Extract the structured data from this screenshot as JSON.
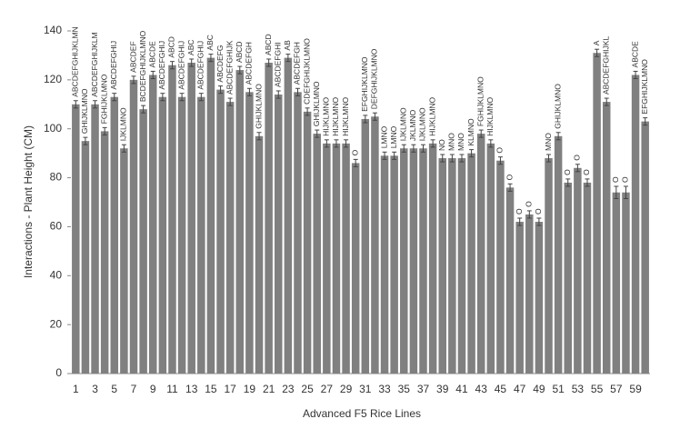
{
  "chart_data": {
    "type": "bar",
    "x_label": "Advanced F5 Rice Lines",
    "y_label": "Interactions - Plant Height (CM)",
    "categories": [
      "1",
      null,
      "3",
      null,
      "5",
      null,
      "7",
      null,
      "9",
      null,
      "11",
      null,
      "13",
      null,
      "15",
      null,
      "17",
      null,
      "19",
      null,
      "21",
      null,
      "23",
      null,
      "25",
      null,
      "27",
      null,
      "29",
      null,
      "31",
      null,
      "33",
      null,
      "35",
      null,
      "37",
      null,
      "39",
      null,
      "41",
      null,
      "43",
      null,
      "45",
      null,
      "47",
      null,
      "49",
      null,
      "51",
      null,
      "53",
      null,
      "55",
      null,
      "57",
      null,
      "59",
      null
    ],
    "values": [
      110,
      95,
      110,
      99,
      113,
      92,
      120,
      108,
      122,
      113,
      126,
      113,
      127,
      113,
      129,
      116,
      111,
      124,
      115,
      97,
      127,
      114,
      129,
      115,
      107,
      98,
      94,
      94,
      94,
      86,
      104,
      105,
      89,
      89,
      92,
      92,
      92,
      94,
      88,
      88,
      88,
      90,
      98,
      94,
      87,
      76,
      62,
      65,
      62,
      88,
      97,
      78,
      84,
      78,
      131,
      111,
      74,
      74,
      122,
      103
    ],
    "errors": [
      1.5,
      1.5,
      1.5,
      1.5,
      1.5,
      1.5,
      1.5,
      1.5,
      1.5,
      1.5,
      1.5,
      1.5,
      1.5,
      1.5,
      1.5,
      1.5,
      1.5,
      1.5,
      1.5,
      1.5,
      1.5,
      1.5,
      1.5,
      1.5,
      1.5,
      1.5,
      1.5,
      1.5,
      1.5,
      1.5,
      1.5,
      1.5,
      1.5,
      1.5,
      1.5,
      1.5,
      1.5,
      1.5,
      1.5,
      1.5,
      1.5,
      1.5,
      1.5,
      1.5,
      1.5,
      1.5,
      1.5,
      1.5,
      1.5,
      1.5,
      1.5,
      1.5,
      1.5,
      1.5,
      1.5,
      1.5,
      2.5,
      2.5,
      1.5,
      1.5
    ],
    "value_labels": [
      "ABCDEFGHIJKLMN",
      "GHIJKLMNO",
      "ABCDEFGHIJKLM",
      "FGHIJKLMNO",
      "ABCDEFGHIJ",
      "IJKLMNO",
      "ABCDEF",
      "BCDEFGHIJKLMNO",
      "ABCDE",
      "ABCDEFGHIJ",
      "ABCD",
      "ABCDEFGHIJ",
      "ABC",
      "ABCDEFGHIJ",
      "ABC",
      "ABCDEFG",
      "ABCDEFGHIJK",
      "ABCD",
      "ABCDEFGH",
      "GHIJKLMNO",
      "ABCD",
      "ABCDEFGHI",
      "AB",
      "ABCDEFGH",
      "CDEFGHIJKLMNO",
      "GHIJKLMNO",
      "HIJKLMNO",
      "HIJKLMNO",
      "HIJKLMNO",
      "O",
      "EFGHIJKLMNO",
      "DEFGHIJKLMNO",
      "LMNO",
      "LMNO",
      "IJKLMNO",
      "JKLMNO",
      "IJKLMNO",
      "HIJKLMNO",
      "NO",
      "MNO",
      "MNO",
      "KLMNO",
      "FGHIJKLMNO",
      "HIJKLMNO",
      "O",
      "O",
      "O",
      "O",
      "O",
      "MNO",
      "GHIJKLMNO",
      "O",
      "O",
      "O",
      "A",
      "ABCDEFGHIJKL",
      "O",
      "O",
      "ABCDE",
      "EFGHIJKLMNO"
    ],
    "color": "#808080",
    "ylim": [
      0,
      140
    ],
    "yticks": [
      0,
      20,
      40,
      60,
      80,
      100,
      120,
      140
    ]
  }
}
